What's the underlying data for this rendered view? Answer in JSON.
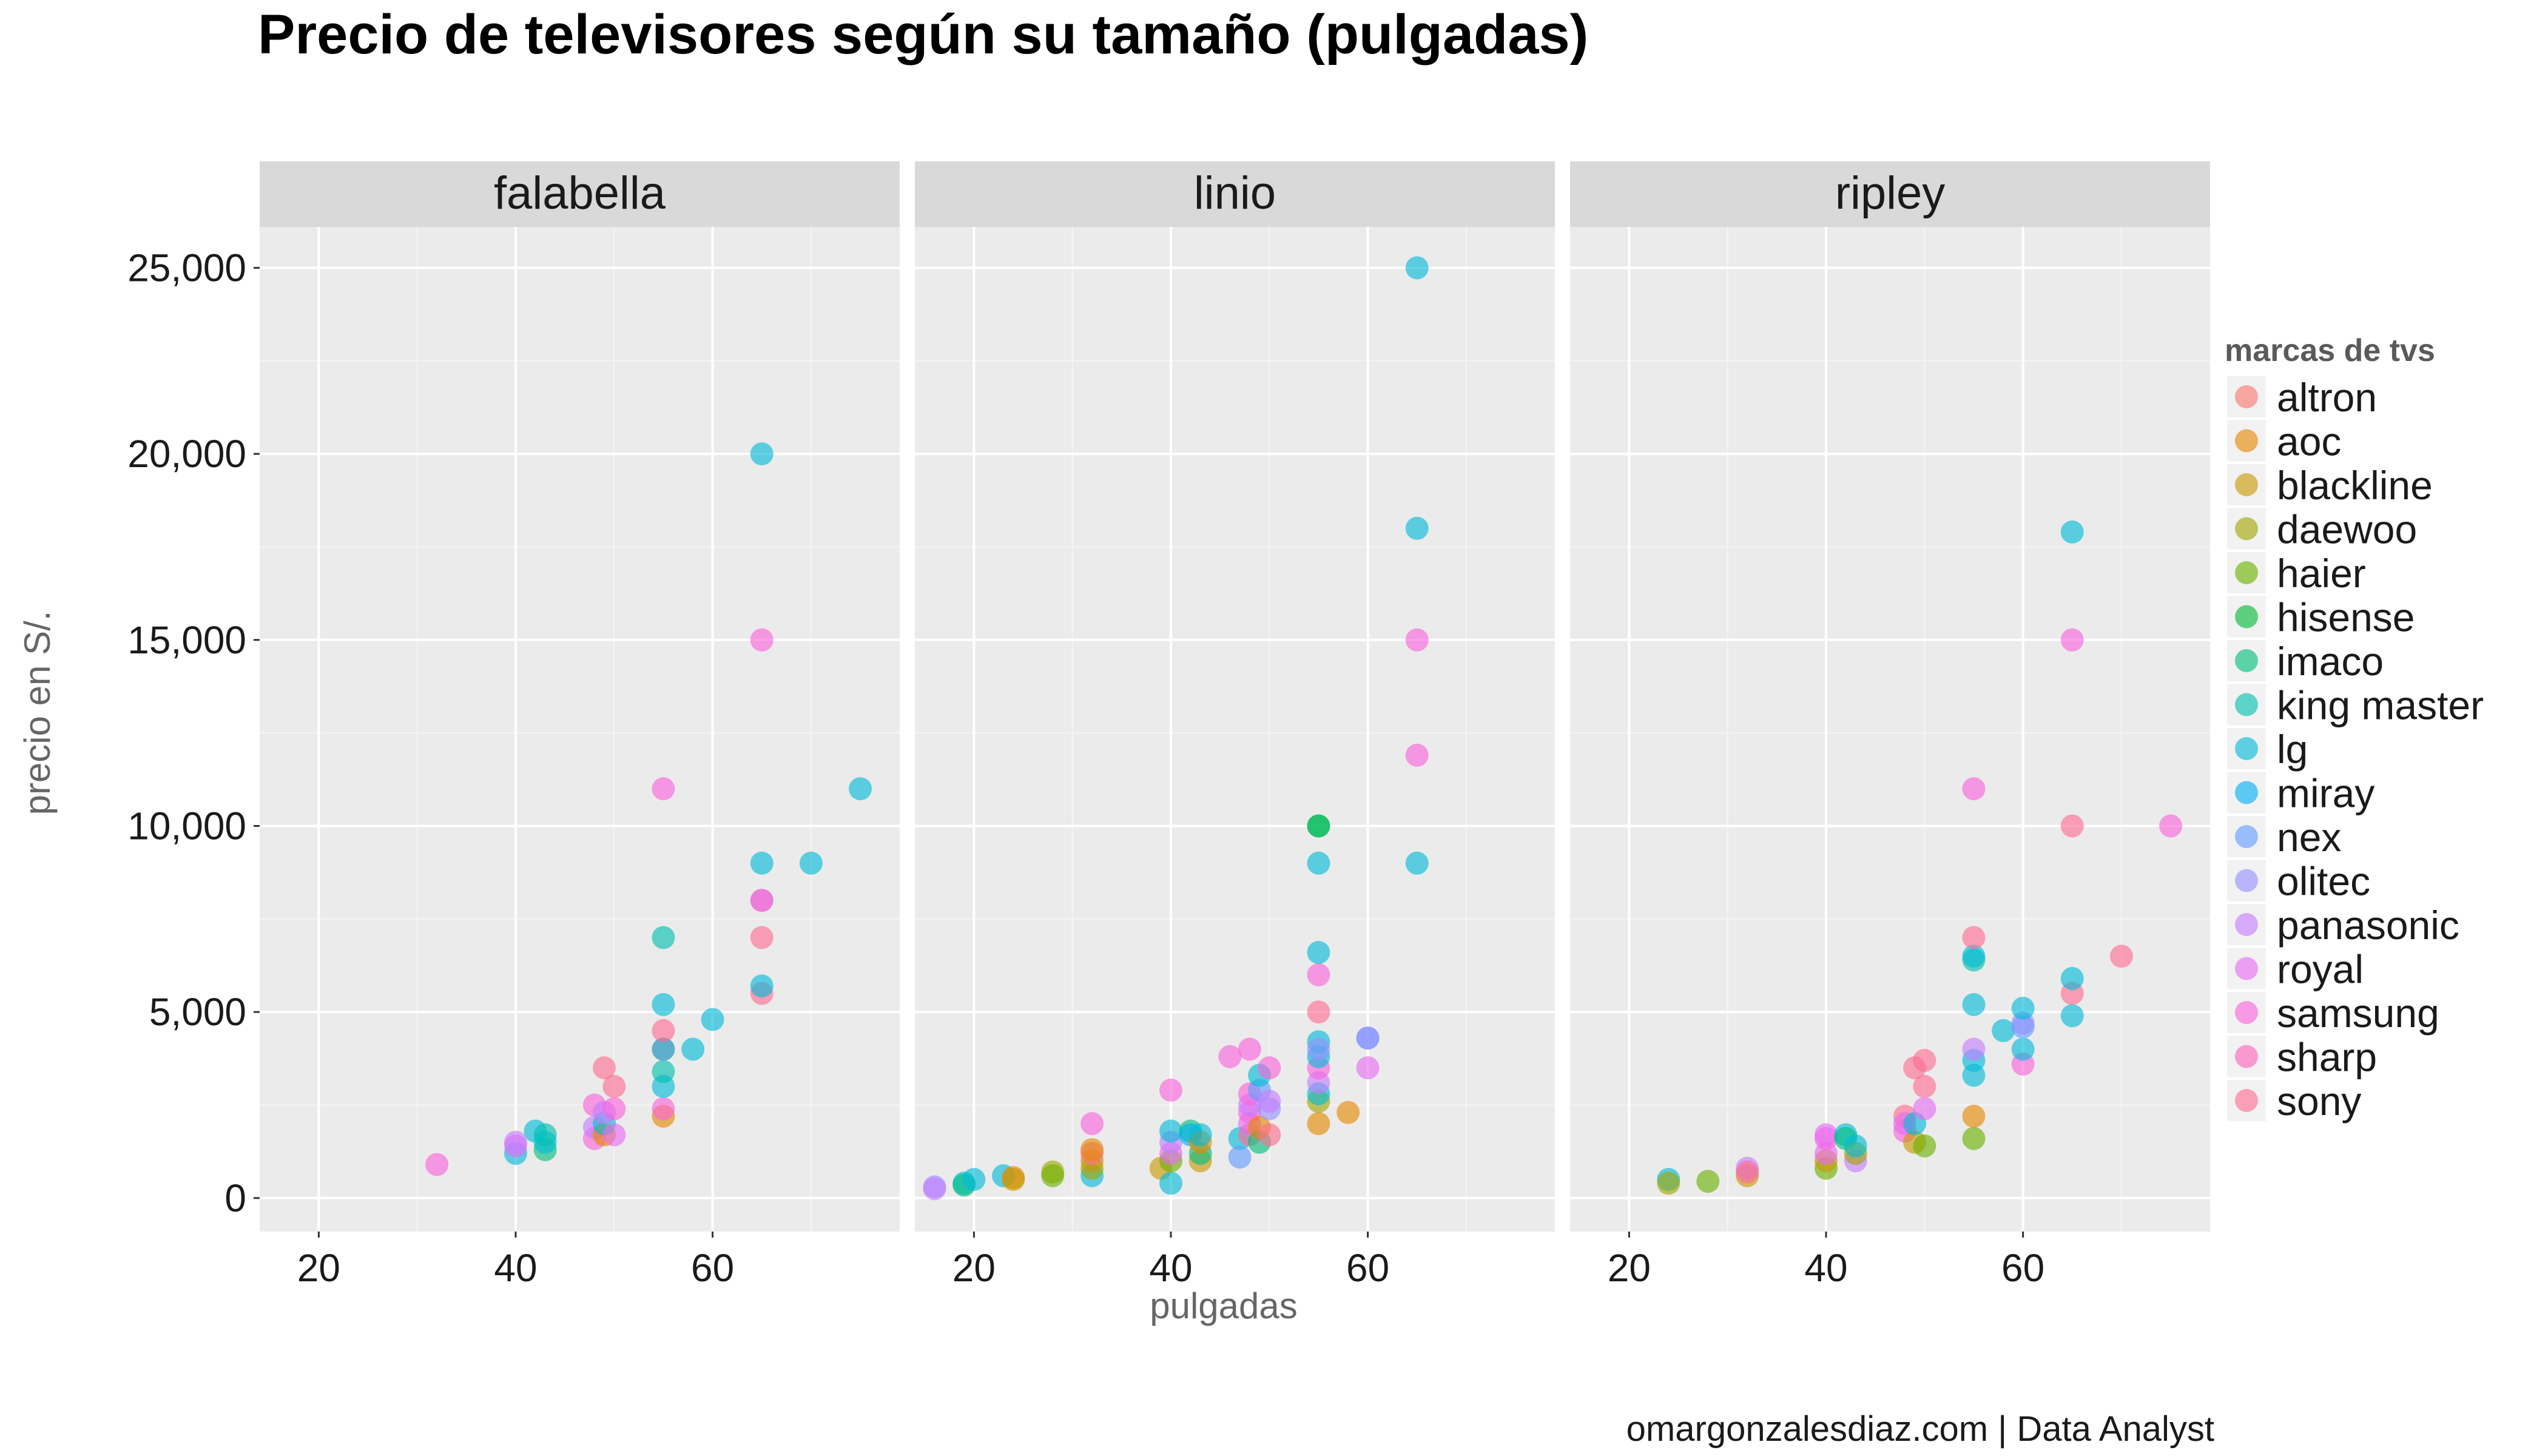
{
  "chart_data": {
    "type": "scatter",
    "title": "Precio de televisores según su tamaño (pulgadas)",
    "xlabel": "pulgadas",
    "ylabel": "precio en S/.",
    "xlim": [
      14,
      79
    ],
    "ylim": [
      -900,
      26100
    ],
    "x_ticks": [
      20,
      40,
      60
    ],
    "x_tick_labels": [
      "20",
      "40",
      "60"
    ],
    "y_ticks": [
      0,
      5000,
      10000,
      15000,
      20000,
      25000
    ],
    "y_tick_labels": [
      "0",
      "5,000",
      "10,000",
      "15,000",
      "20,000",
      "25,000"
    ],
    "grid": true,
    "legend_placement": "right",
    "legend_title": "marcas de tvs",
    "caption": "omargonzalesdiaz.com | Data Analyst",
    "brands": [
      {
        "name": "altron",
        "color": "#F8766D"
      },
      {
        "name": "aoc",
        "color": "#E58700"
      },
      {
        "name": "blackline",
        "color": "#C99800"
      },
      {
        "name": "daewoo",
        "color": "#A3A500"
      },
      {
        "name": "haier",
        "color": "#6BB100"
      },
      {
        "name": "hisense",
        "color": "#00BA38"
      },
      {
        "name": "imaco",
        "color": "#00BF7D"
      },
      {
        "name": "king master",
        "color": "#00C0AF"
      },
      {
        "name": "lg",
        "color": "#00BCD8"
      },
      {
        "name": "miray",
        "color": "#00B0F6"
      },
      {
        "name": "nex",
        "color": "#619CFF"
      },
      {
        "name": "olitec",
        "color": "#9590FF"
      },
      {
        "name": "panasonic",
        "color": "#C77CFF"
      },
      {
        "name": "royal",
        "color": "#E76BF3"
      },
      {
        "name": "samsung",
        "color": "#FA62DB"
      },
      {
        "name": "sharp",
        "color": "#FF62BC"
      },
      {
        "name": "sony",
        "color": "#FF6C91"
      }
    ],
    "panels": [
      {
        "name": "falabella",
        "points": [
          [
            32,
            900,
            "samsung"
          ],
          [
            40,
            1200,
            "lg"
          ],
          [
            40,
            1400,
            "royal"
          ],
          [
            40,
            1500,
            "panasonic"
          ],
          [
            42,
            1800,
            "lg"
          ],
          [
            43,
            1300,
            "imaco"
          ],
          [
            43,
            1500,
            "lg"
          ],
          [
            43,
            1700,
            "king master"
          ],
          [
            48,
            1600,
            "samsung"
          ],
          [
            48,
            1900,
            "panasonic"
          ],
          [
            48,
            2500,
            "samsung"
          ],
          [
            49,
            1700,
            "aoc"
          ],
          [
            49,
            2000,
            "lg"
          ],
          [
            49,
            2300,
            "panasonic"
          ],
          [
            49,
            3500,
            "sony"
          ],
          [
            50,
            1700,
            "royal"
          ],
          [
            50,
            2400,
            "samsung"
          ],
          [
            50,
            3000,
            "sony"
          ],
          [
            55,
            2200,
            "aoc"
          ],
          [
            55,
            2400,
            "samsung"
          ],
          [
            55,
            3000,
            "lg"
          ],
          [
            55,
            3400,
            "king master"
          ],
          [
            55,
            4000,
            "sony"
          ],
          [
            55,
            4000,
            "lg"
          ],
          [
            55,
            4500,
            "sony"
          ],
          [
            55,
            5200,
            "lg"
          ],
          [
            55,
            7000,
            "king master"
          ],
          [
            55,
            11000,
            "samsung"
          ],
          [
            58,
            4000,
            "lg"
          ],
          [
            60,
            4800,
            "lg"
          ],
          [
            65,
            5500,
            "sony"
          ],
          [
            65,
            5700,
            "lg"
          ],
          [
            65,
            7000,
            "sony"
          ],
          [
            65,
            8000,
            "sony"
          ],
          [
            65,
            8000,
            "royal"
          ],
          [
            65,
            9000,
            "lg"
          ],
          [
            65,
            15000,
            "samsung"
          ],
          [
            65,
            20000,
            "lg"
          ],
          [
            70,
            9000,
            "lg"
          ],
          [
            75,
            11000,
            "lg"
          ]
        ]
      },
      {
        "name": "linio",
        "points": [
          [
            16,
            300,
            "olitec"
          ],
          [
            16,
            250,
            "panasonic"
          ],
          [
            19,
            400,
            "lg"
          ],
          [
            19,
            350,
            "imaco"
          ],
          [
            20,
            500,
            "lg"
          ],
          [
            23,
            600,
            "lg"
          ],
          [
            24,
            550,
            "aoc"
          ],
          [
            24,
            500,
            "blackline"
          ],
          [
            28,
            700,
            "daewoo"
          ],
          [
            28,
            600,
            "haier"
          ],
          [
            32,
            600,
            "lg"
          ],
          [
            32,
            800,
            "daewoo"
          ],
          [
            32,
            1000,
            "blackline"
          ],
          [
            32,
            1200,
            "sony"
          ],
          [
            32,
            1300,
            "aoc"
          ],
          [
            32,
            2000,
            "samsung"
          ],
          [
            39,
            800,
            "blackline"
          ],
          [
            40,
            400,
            "lg"
          ],
          [
            40,
            1000,
            "haier"
          ],
          [
            40,
            1200,
            "royal"
          ],
          [
            40,
            1500,
            "panasonic"
          ],
          [
            40,
            1800,
            "lg"
          ],
          [
            40,
            2900,
            "samsung"
          ],
          [
            42,
            1800,
            "imaco"
          ],
          [
            42,
            1700,
            "miray"
          ],
          [
            43,
            1000,
            "blackline"
          ],
          [
            43,
            1200,
            "imaco"
          ],
          [
            43,
            1500,
            "aoc"
          ],
          [
            43,
            1700,
            "lg"
          ],
          [
            46,
            3800,
            "samsung"
          ],
          [
            47,
            1600,
            "lg"
          ],
          [
            47,
            1100,
            "nex"
          ],
          [
            48,
            1700,
            "sony"
          ],
          [
            48,
            2000,
            "royal"
          ],
          [
            48,
            2300,
            "samsung"
          ],
          [
            48,
            2500,
            "panasonic"
          ],
          [
            48,
            2800,
            "samsung"
          ],
          [
            48,
            4000,
            "samsung"
          ],
          [
            49,
            1500,
            "imaco"
          ],
          [
            49,
            1900,
            "aoc"
          ],
          [
            49,
            2900,
            "nex"
          ],
          [
            49,
            3300,
            "lg"
          ],
          [
            50,
            1700,
            "sony"
          ],
          [
            50,
            2400,
            "olitec"
          ],
          [
            50,
            2600,
            "panasonic"
          ],
          [
            50,
            3500,
            "samsung"
          ],
          [
            55,
            2000,
            "aoc"
          ],
          [
            55,
            2600,
            "daewoo"
          ],
          [
            55,
            2800,
            "lg"
          ],
          [
            55,
            3100,
            "panasonic"
          ],
          [
            55,
            3500,
            "samsung"
          ],
          [
            55,
            3800,
            "lg"
          ],
          [
            55,
            4200,
            "lg"
          ],
          [
            55,
            4000,
            "olitec"
          ],
          [
            55,
            5000,
            "sony"
          ],
          [
            55,
            6000,
            "samsung"
          ],
          [
            55,
            6600,
            "lg"
          ],
          [
            55,
            9000,
            "lg"
          ],
          [
            55,
            10000,
            "king master"
          ],
          [
            55,
            10000,
            "hisense"
          ],
          [
            58,
            2300,
            "aoc"
          ],
          [
            60,
            4300,
            "nex"
          ],
          [
            60,
            4300,
            "olitec"
          ],
          [
            60,
            3500,
            "royal"
          ],
          [
            65,
            9000,
            "lg"
          ],
          [
            65,
            11900,
            "samsung"
          ],
          [
            65,
            15000,
            "samsung"
          ],
          [
            65,
            18000,
            "lg"
          ],
          [
            65,
            25000,
            "lg"
          ]
        ]
      },
      {
        "name": "ripley",
        "points": [
          [
            24,
            500,
            "lg"
          ],
          [
            24,
            400,
            "daewoo"
          ],
          [
            28,
            450,
            "haier"
          ],
          [
            32,
            600,
            "blackline"
          ],
          [
            32,
            800,
            "panasonic"
          ],
          [
            32,
            700,
            "sony"
          ],
          [
            40,
            800,
            "haier"
          ],
          [
            40,
            1000,
            "blackline"
          ],
          [
            40,
            1200,
            "royal"
          ],
          [
            40,
            1600,
            "samsung"
          ],
          [
            40,
            1700,
            "royal"
          ],
          [
            42,
            1700,
            "lg"
          ],
          [
            42,
            1600,
            "imaco"
          ],
          [
            43,
            1000,
            "panasonic"
          ],
          [
            43,
            1200,
            "daewoo"
          ],
          [
            43,
            1400,
            "lg"
          ],
          [
            48,
            1800,
            "samsung"
          ],
          [
            48,
            2200,
            "sony"
          ],
          [
            48,
            2000,
            "royal"
          ],
          [
            49,
            1500,
            "blackline"
          ],
          [
            49,
            2000,
            "lg"
          ],
          [
            49,
            3500,
            "sony"
          ],
          [
            50,
            1400,
            "haier"
          ],
          [
            50,
            2400,
            "royal"
          ],
          [
            50,
            3000,
            "sony"
          ],
          [
            50,
            3700,
            "sony"
          ],
          [
            55,
            1600,
            "haier"
          ],
          [
            55,
            2200,
            "aoc"
          ],
          [
            55,
            3300,
            "lg"
          ],
          [
            55,
            3700,
            "lg"
          ],
          [
            55,
            4000,
            "panasonic"
          ],
          [
            55,
            5200,
            "lg"
          ],
          [
            55,
            6400,
            "king master"
          ],
          [
            55,
            6500,
            "lg"
          ],
          [
            55,
            7000,
            "sony"
          ],
          [
            55,
            11000,
            "samsung"
          ],
          [
            58,
            4500,
            "lg"
          ],
          [
            60,
            3600,
            "samsung"
          ],
          [
            60,
            4000,
            "lg"
          ],
          [
            60,
            4600,
            "nex"
          ],
          [
            60,
            4700,
            "olitec"
          ],
          [
            60,
            5100,
            "lg"
          ],
          [
            65,
            4900,
            "lg"
          ],
          [
            65,
            5500,
            "sony"
          ],
          [
            65,
            5900,
            "lg"
          ],
          [
            65,
            10000,
            "sony"
          ],
          [
            65,
            15000,
            "samsung"
          ],
          [
            65,
            17900,
            "lg"
          ],
          [
            70,
            6500,
            "sony"
          ],
          [
            75,
            10000,
            "samsung"
          ]
        ]
      }
    ]
  }
}
